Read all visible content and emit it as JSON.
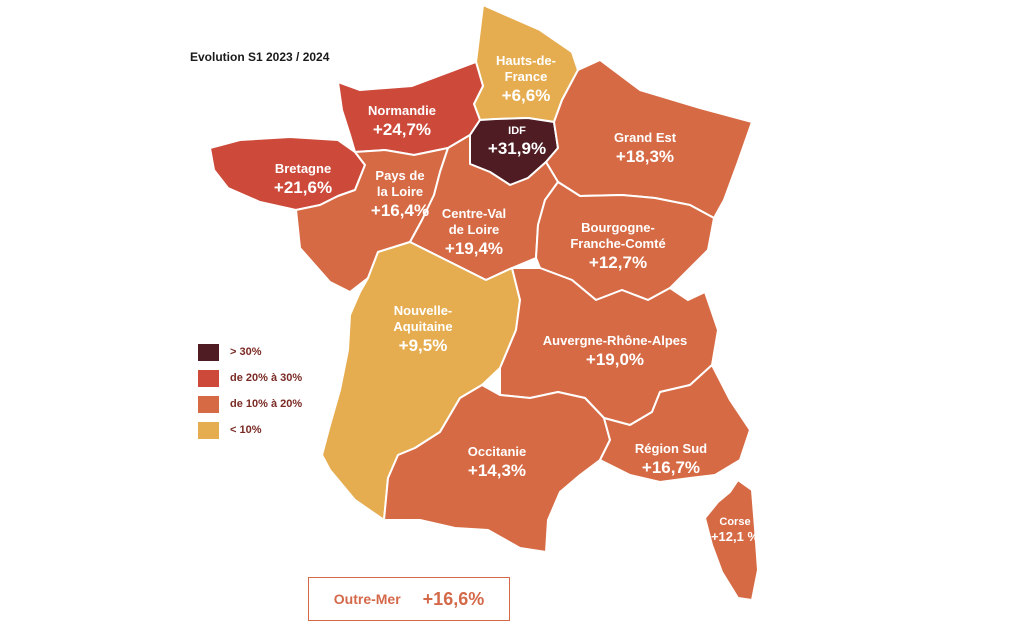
{
  "title": "Evolution S1 2023 / 2024",
  "colors": {
    "gt30": "#4e1c22",
    "r20_30": "#cd4a3b",
    "r10_20": "#d66a44",
    "lt10": "#e6ad50",
    "border": "#ffffff"
  },
  "legend": [
    {
      "label": "> 30%",
      "color": "#4e1c22"
    },
    {
      "label": "de 20% à 30%",
      "color": "#cd4a3b"
    },
    {
      "label": "de 10% à 20%",
      "color": "#d66a44"
    },
    {
      "label": "< 10%",
      "color": "#e6ad50"
    }
  ],
  "regions": [
    {
      "id": "hauts-de-france",
      "name_lines": [
        "Hauts-de-",
        "France"
      ],
      "value": "+6,6%",
      "category": "lt10"
    },
    {
      "id": "normandie",
      "name_lines": [
        "Normandie"
      ],
      "value": "+24,7%",
      "category": "r20_30"
    },
    {
      "id": "idf",
      "name_lines": [
        "IDF"
      ],
      "value": "+31,9%",
      "category": "gt30"
    },
    {
      "id": "grand-est",
      "name_lines": [
        "Grand Est"
      ],
      "value": "+18,3%",
      "category": "r10_20"
    },
    {
      "id": "bretagne",
      "name_lines": [
        "Bretagne"
      ],
      "value": "+21,6%",
      "category": "r20_30"
    },
    {
      "id": "pays-de-la-loire",
      "name_lines": [
        "Pays de",
        "la Loire"
      ],
      "value": "+16,4%",
      "category": "r10_20"
    },
    {
      "id": "centre-val-de-loire",
      "name_lines": [
        "Centre-Val",
        "de Loire"
      ],
      "value": "+19,4%",
      "category": "r10_20"
    },
    {
      "id": "bourgogne-franche-comte",
      "name_lines": [
        "Bourgogne-",
        "Franche-Comté"
      ],
      "value": "+12,7%",
      "category": "r10_20"
    },
    {
      "id": "nouvelle-aquitaine",
      "name_lines": [
        "Nouvelle-",
        "Aquitaine"
      ],
      "value": "+9,5%",
      "category": "lt10"
    },
    {
      "id": "auvergne-rhone-alpes",
      "name_lines": [
        "Auvergne-Rhône-Alpes"
      ],
      "value": "+19,0%",
      "category": "r10_20"
    },
    {
      "id": "occitanie",
      "name_lines": [
        "Occitanie"
      ],
      "value": "+14,3%",
      "category": "r10_20"
    },
    {
      "id": "region-sud",
      "name_lines": [
        "Région Sud"
      ],
      "value": "+16,7%",
      "category": "r10_20"
    },
    {
      "id": "corse",
      "name_lines": [
        "Corse"
      ],
      "value": "+12,1 %",
      "category": "r10_20"
    }
  ],
  "outre_mer": {
    "name": "Outre-Mer",
    "value": "+16,6%"
  }
}
